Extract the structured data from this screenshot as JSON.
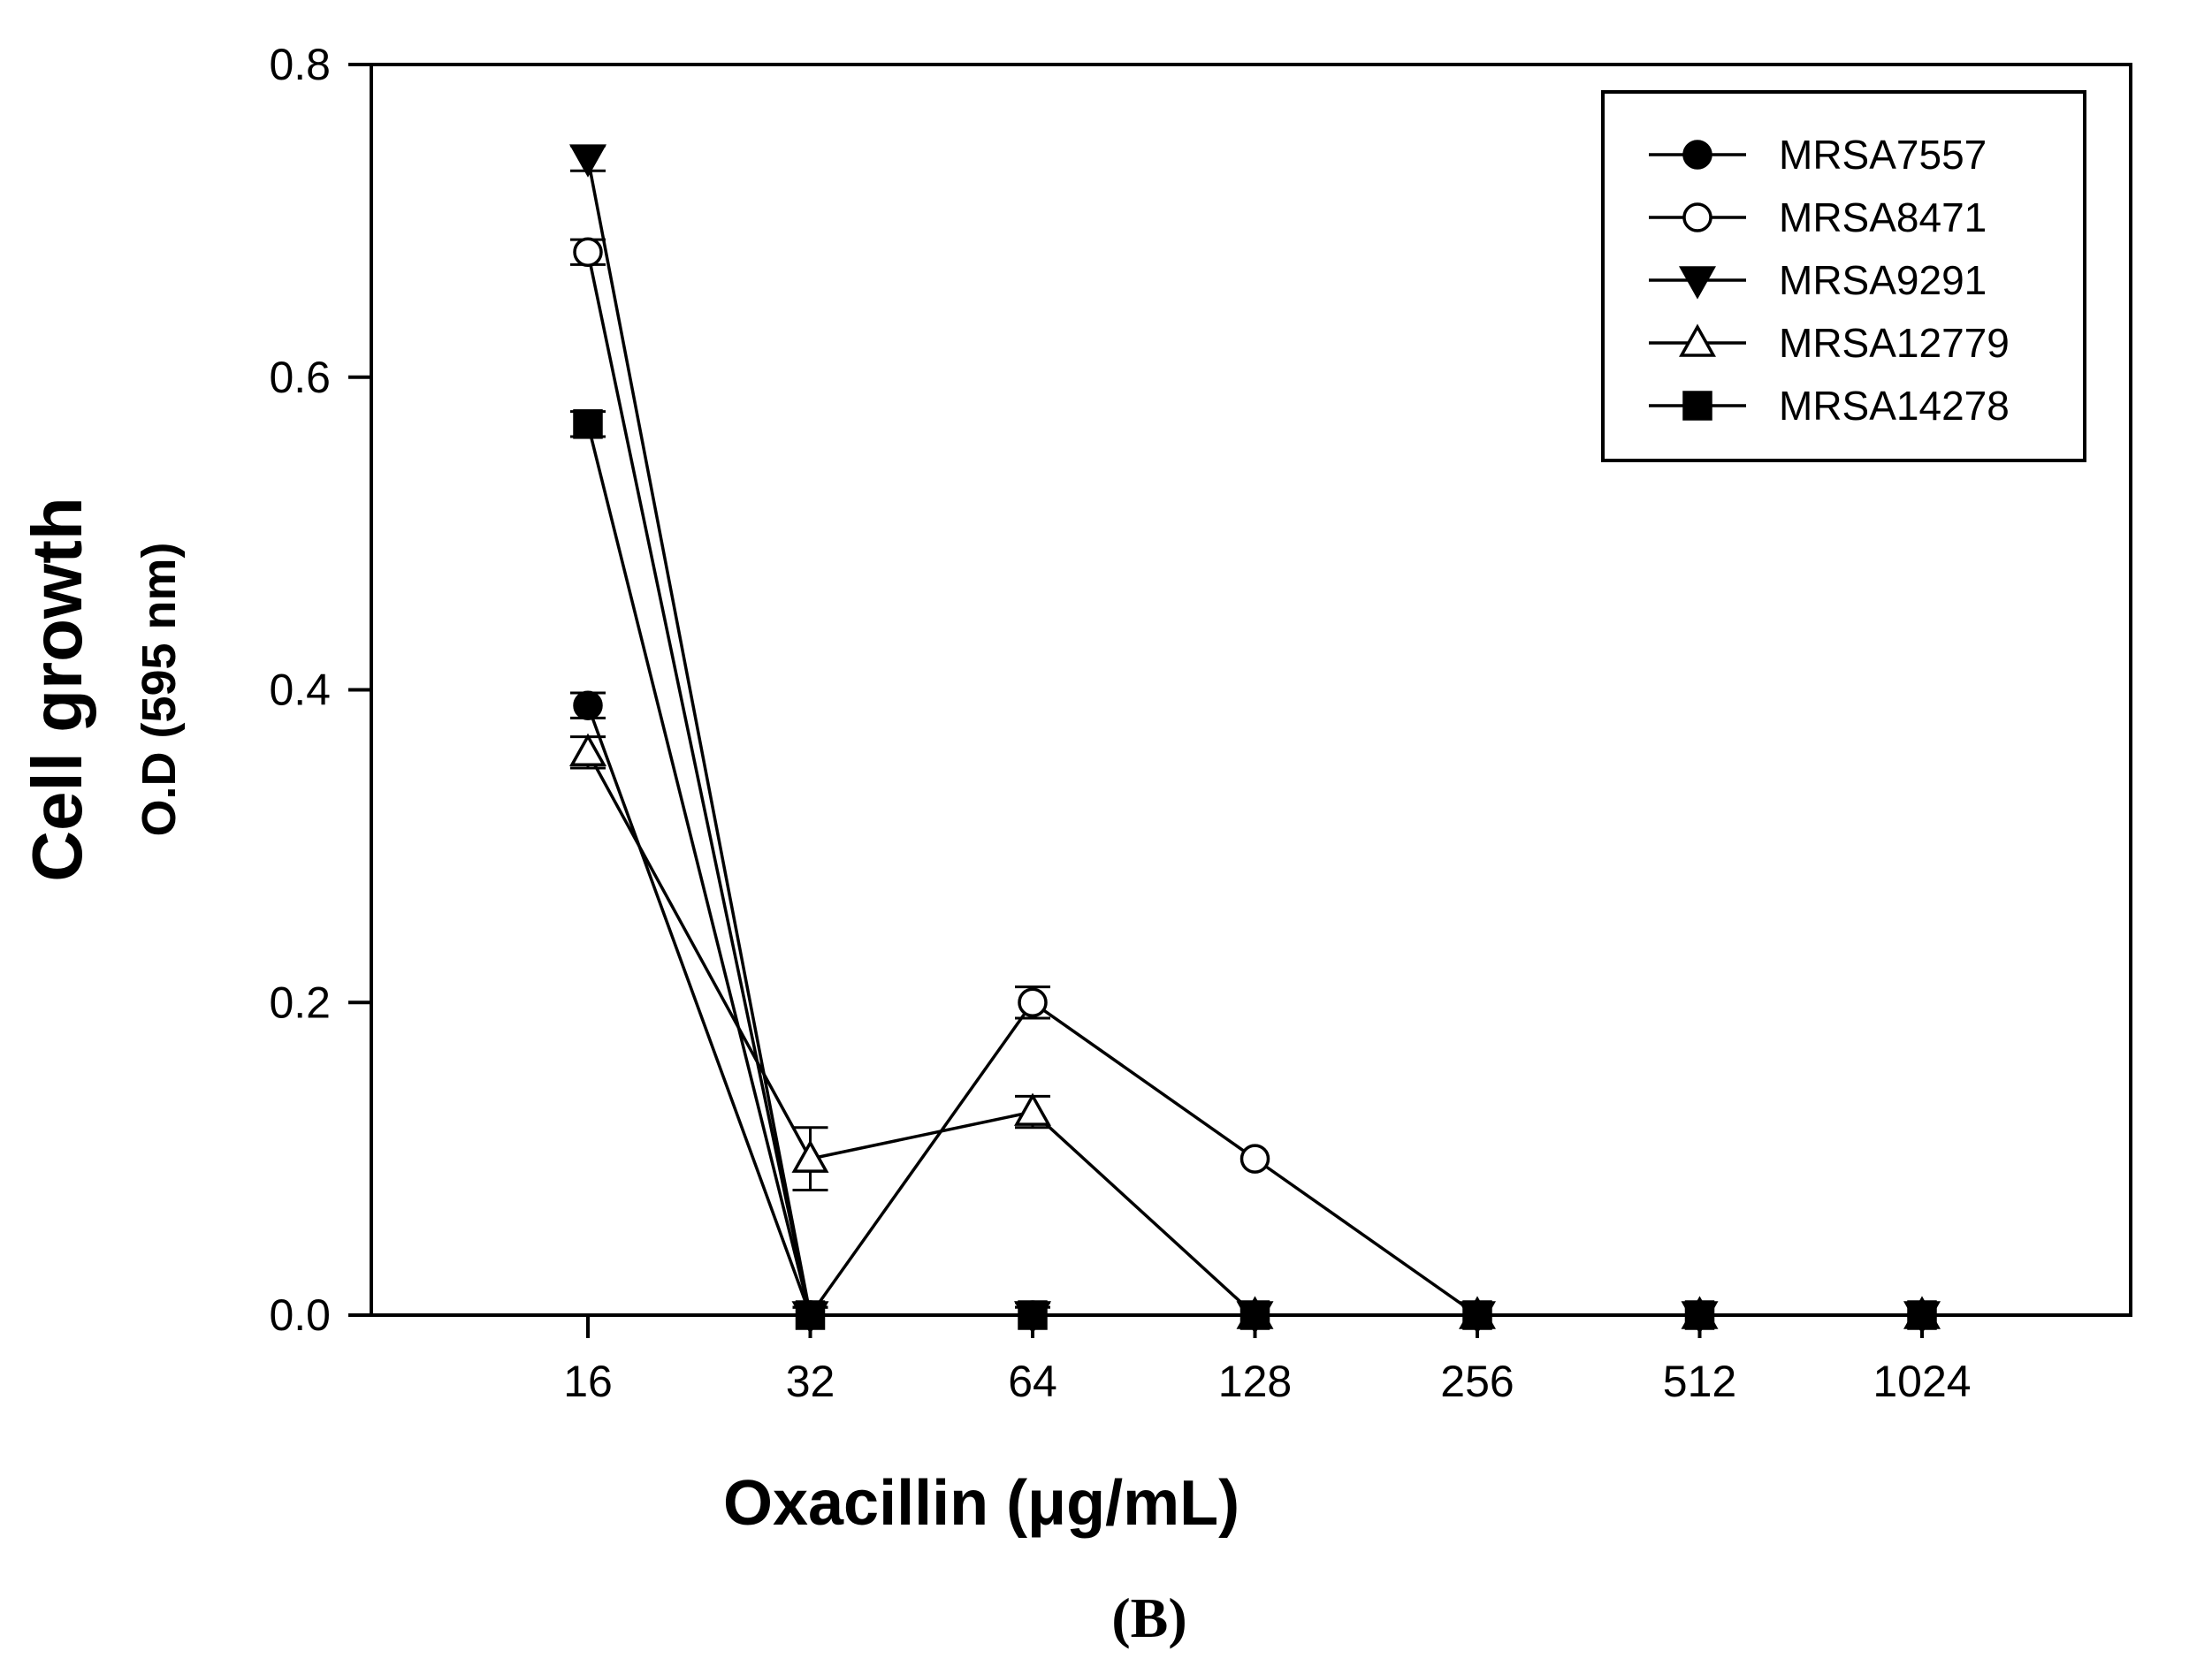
{
  "chart_data": {
    "type": "line",
    "title": "",
    "panel_label": "(B)",
    "xlabel": "Oxacillin (μg/mL)",
    "ylabel_main": "Cell growth",
    "ylabel_sub": "O.D (595 nm)",
    "categories": [
      "16",
      "32",
      "64",
      "128",
      "256",
      "512",
      "1024"
    ],
    "ylim": [
      0,
      0.8
    ],
    "yticks": [
      "0.0",
      "0.2",
      "0.4",
      "0.6",
      "0.8"
    ],
    "grid": false,
    "legend_position": "top-right",
    "series": [
      {
        "name": "MRSA7557",
        "marker": "circle",
        "filled": true,
        "values": [
          0.39,
          0.0,
          0.0,
          0.0,
          0.0,
          0.0,
          0.0
        ],
        "errors": [
          0.008,
          0.005,
          0.005,
          0.0,
          0.0,
          0.0,
          0.0
        ]
      },
      {
        "name": "MRSA8471",
        "marker": "circle",
        "filled": false,
        "values": [
          0.68,
          0.0,
          0.2,
          0.1,
          0.0,
          0.0,
          0.0
        ],
        "errors": [
          0.008,
          0.005,
          0.01,
          0.0,
          0.0,
          0.0,
          0.0
        ]
      },
      {
        "name": "MRSA9291",
        "marker": "triangle-down",
        "filled": true,
        "values": [
          0.74,
          0.0,
          0.0,
          0.0,
          0.0,
          0.0,
          0.0
        ],
        "errors": [
          0.008,
          0.005,
          0.005,
          0.0,
          0.0,
          0.0,
          0.0
        ]
      },
      {
        "name": "MRSA12779",
        "marker": "triangle-up",
        "filled": false,
        "values": [
          0.36,
          0.1,
          0.13,
          0.0,
          0.0,
          0.0,
          0.0
        ],
        "errors": [
          0.01,
          0.02,
          0.01,
          0.0,
          0.0,
          0.0,
          0.0
        ]
      },
      {
        "name": "MRSA14278",
        "marker": "square",
        "filled": true,
        "values": [
          0.57,
          0.0,
          0.0,
          0.0,
          0.0,
          0.0,
          0.0
        ],
        "errors": [
          0.008,
          0.005,
          0.008,
          0.0,
          0.0,
          0.0,
          0.0
        ]
      }
    ]
  }
}
